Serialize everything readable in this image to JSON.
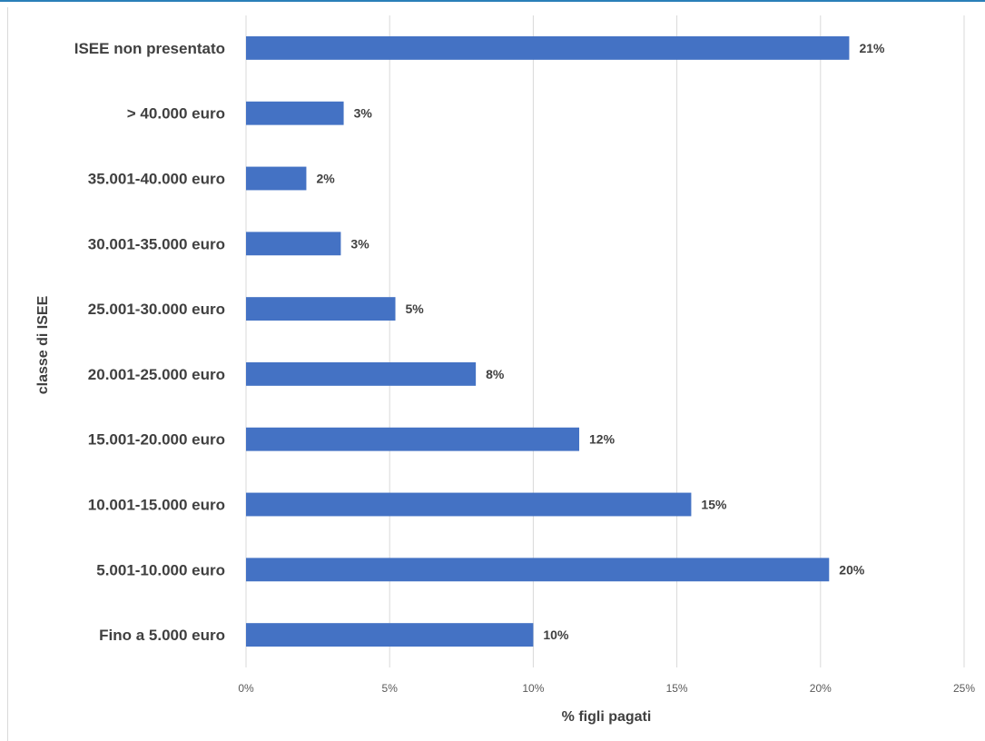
{
  "chart_data": {
    "type": "bar",
    "orientation": "horizontal",
    "categories": [
      "ISEE non presentato",
      "> 40.000 euro",
      "35.001-40.000 euro",
      "30.001-35.000 euro",
      "25.001-30.000 euro",
      "20.001-25.000 euro",
      "15.001-20.000 euro",
      "10.001-15.000 euro",
      "5.001-10.000 euro",
      "Fino a 5.000 euro"
    ],
    "values": [
      21.0,
      3.4,
      2.1,
      3.3,
      5.2,
      8.0,
      11.6,
      15.5,
      20.3,
      10.0
    ],
    "data_labels": [
      "21%",
      "3%",
      "2%",
      "3%",
      "5%",
      "8%",
      "12%",
      "15%",
      "20%",
      "10%"
    ],
    "xlim": [
      0,
      25
    ],
    "xticks": [
      "0%",
      "5%",
      "10%",
      "15%",
      "20%",
      "25%"
    ],
    "xlabel": "% figli pagati",
    "ylabel": "classe di ISEE",
    "grid": "vertical",
    "bar_color": "#4472C4"
  }
}
